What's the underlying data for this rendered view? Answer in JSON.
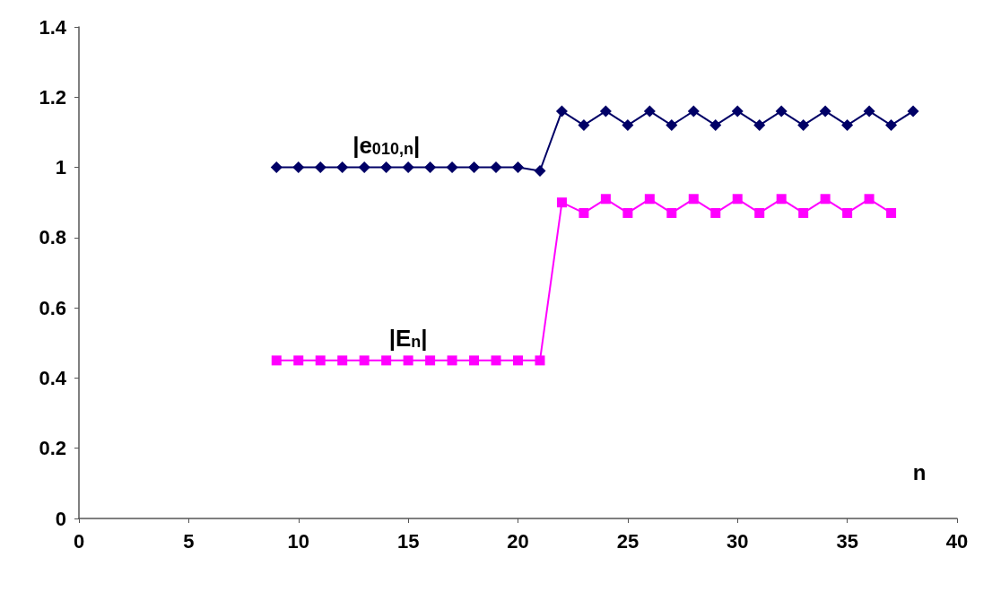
{
  "chart_data": {
    "type": "line",
    "xlabel": "n",
    "xlim": [
      0,
      40
    ],
    "xticks": [
      0,
      5,
      10,
      15,
      20,
      25,
      30,
      35,
      40
    ],
    "ylim": [
      0,
      1.4
    ],
    "yticks": [
      0,
      0.2,
      0.4,
      0.6,
      0.8,
      1,
      1.2,
      1.4
    ],
    "grid": false,
    "legend": false,
    "line_style": "solid",
    "series": [
      {
        "name": "|e$_{010,n}$|",
        "color": "#000066",
        "marker": "diamond",
        "x": [
          9,
          10,
          11,
          12,
          13,
          14,
          15,
          16,
          17,
          18,
          19,
          20,
          21,
          22,
          23,
          24,
          25,
          26,
          27,
          28,
          29,
          30,
          31,
          32,
          33,
          34,
          35,
          36,
          37,
          38
        ],
        "values": [
          1,
          1,
          1,
          1,
          1,
          1,
          1,
          1,
          1,
          1,
          1,
          1,
          0.99,
          1.16,
          1.12,
          1.16,
          1.12,
          1.16,
          1.12,
          1.16,
          1.12,
          1.16,
          1.12,
          1.16,
          1.12,
          1.16,
          1.12,
          1.16,
          1.12,
          1.16
        ]
      },
      {
        "name": "|E$_{n}$|",
        "color": "#ff00ff",
        "marker": "square",
        "x": [
          9,
          10,
          11,
          12,
          13,
          14,
          15,
          16,
          17,
          18,
          19,
          20,
          21,
          22,
          23,
          24,
          25,
          26,
          27,
          28,
          29,
          30,
          31,
          32,
          33,
          34,
          35,
          36,
          37
        ],
        "values": [
          0.45,
          0.45,
          0.45,
          0.45,
          0.45,
          0.45,
          0.45,
          0.45,
          0.45,
          0.45,
          0.45,
          0.45,
          0.45,
          0.9,
          0.87,
          0.91,
          0.87,
          0.91,
          0.87,
          0.91,
          0.87,
          0.91,
          0.87,
          0.91,
          0.87,
          0.91,
          0.87,
          0.91,
          0.87
        ]
      }
    ]
  }
}
